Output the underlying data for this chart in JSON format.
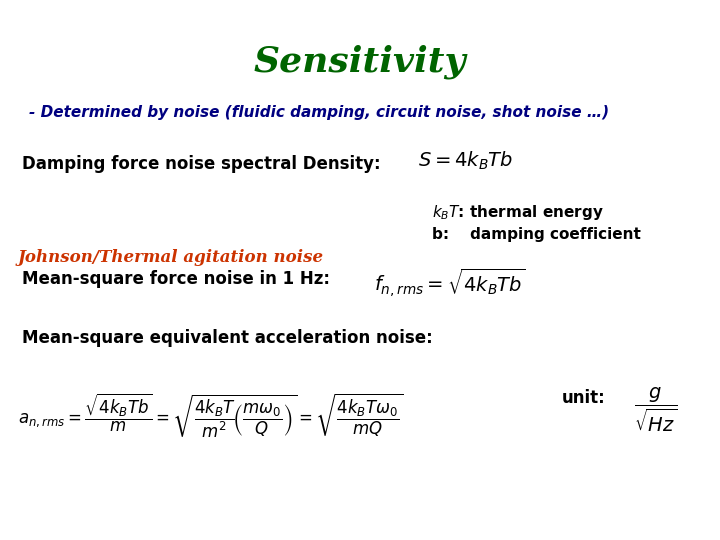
{
  "title": "Sensitivity",
  "title_color": "#006400",
  "title_fontsize": 26,
  "subtitle": "- Determined by noise (fluidic damping, circuit noise, shot noise …)",
  "subtitle_color": "#000080",
  "subtitle_fontsize": 11,
  "background_color": "#ffffff",
  "text_color": "#000000",
  "orange_color": "#cc3300",
  "johnson_label": "Johnson/Thermal agitation noise",
  "unit_label": "unit:",
  "line1_label_fontsize": 12,
  "line3_label_fontsize": 12,
  "line4_label_fontsize": 12,
  "formula_fontsize": 14,
  "annot_fontsize": 11
}
